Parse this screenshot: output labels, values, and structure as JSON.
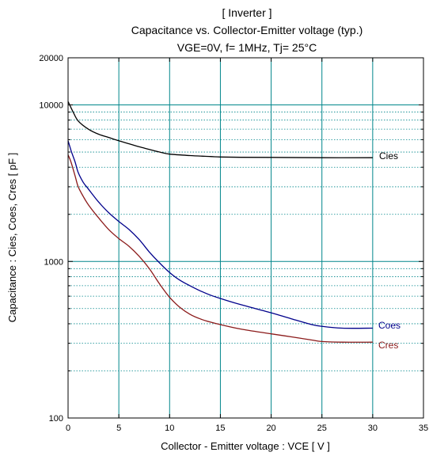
{
  "chart_data": {
    "type": "line",
    "title_lines": [
      "[ Inverter ]",
      "Capacitance  vs.  Collector-Emitter voltage  (typ.)",
      "VGE=0V,  f= 1MHz,  Tj= 25°C"
    ],
    "xlabel": "Collector - Emitter voltage :  VCE  [ V ]",
    "ylabel": "Capacitance  :  Cies, Coes, Cres  [ pF ]",
    "xlim": [
      0,
      35
    ],
    "ylim": [
      100,
      20000
    ],
    "y_scale": "log",
    "grid": true,
    "x_ticks": [
      "0",
      "5",
      "10",
      "15",
      "20",
      "25",
      "30",
      "35"
    ],
    "y_ticks": [
      "100",
      "1000",
      "10000",
      "20000"
    ],
    "series": [
      {
        "name": "Cies",
        "color": "#000000",
        "x": [
          0,
          0.5,
          1,
          2,
          3,
          4,
          5,
          6,
          7,
          8,
          9,
          10,
          12,
          14,
          15,
          17,
          20,
          25,
          30
        ],
        "y": [
          10500,
          9000,
          7900,
          7000,
          6500,
          6200,
          5900,
          5650,
          5400,
          5200,
          5000,
          4850,
          4750,
          4680,
          4650,
          4630,
          4620,
          4600,
          4600
        ]
      },
      {
        "name": "Coes",
        "color": "#00008b",
        "x": [
          0,
          0.3,
          0.7,
          1,
          1.5,
          2,
          3,
          4,
          5,
          6,
          7,
          8,
          9,
          10,
          11,
          12,
          13,
          14,
          15,
          17,
          20,
          22,
          24,
          25,
          27,
          30
        ],
        "y": [
          5900,
          5100,
          4300,
          3700,
          3200,
          2900,
          2400,
          2050,
          1800,
          1600,
          1380,
          1150,
          980,
          850,
          760,
          700,
          650,
          610,
          580,
          530,
          470,
          430,
          395,
          385,
          375,
          375
        ]
      },
      {
        "name": "Cres",
        "color": "#8b1a1a",
        "x": [
          0,
          0.3,
          0.7,
          1,
          1.5,
          2,
          3,
          4,
          5,
          6,
          7,
          8,
          9,
          10,
          11,
          12,
          13,
          14,
          15,
          17,
          20,
          22,
          24,
          25,
          27,
          30
        ],
        "y": [
          4800,
          4300,
          3500,
          3000,
          2600,
          2300,
          1900,
          1600,
          1400,
          1250,
          1080,
          900,
          720,
          590,
          510,
          460,
          430,
          410,
          395,
          370,
          345,
          330,
          315,
          308,
          305,
          305
        ]
      }
    ],
    "curve_labels": [
      "Cies",
      "Coes",
      "Cres"
    ]
  }
}
